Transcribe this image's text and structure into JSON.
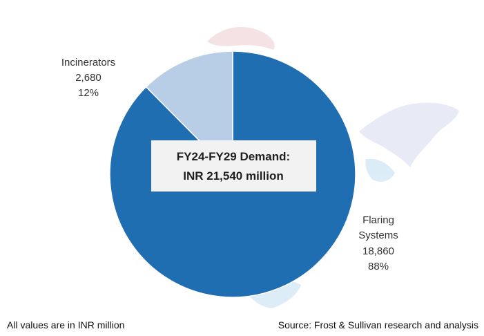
{
  "chart_data": {
    "type": "pie",
    "slices": [
      {
        "label": "Incinerators",
        "value": 2680,
        "value_label": "2,680",
        "percent_label": "12%",
        "color": "#b8cde6"
      },
      {
        "label": "Flaring Systems",
        "label_lines": [
          "Flaring",
          "Systems"
        ],
        "value": 18860,
        "value_label": "18,860",
        "percent_label": "88%",
        "color": "#1f6eb1"
      }
    ],
    "center_label": [
      "FY24-FY29 Demand:",
      "INR 21,540 million"
    ],
    "legend": "none"
  },
  "footer": {
    "units_note": "All values are in INR million",
    "source": "Source: Frost & Sullivan research and analysis"
  },
  "colors": {
    "map_background": "#f3dfe2",
    "map_background_2": "#e6e8f4",
    "map_background_3": "#d8ebf7"
  }
}
